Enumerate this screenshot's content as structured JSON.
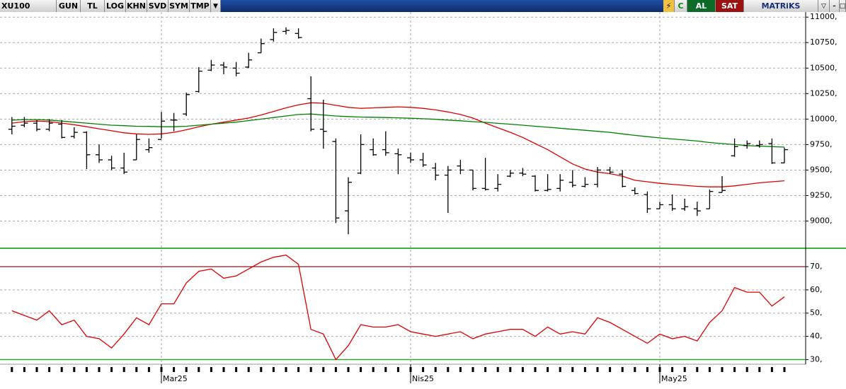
{
  "toolbar": {
    "symbol": "XU100",
    "buttons": [
      "GUN",
      "TL",
      "LOG",
      "KHN",
      "SVD",
      "SYM",
      "TMP"
    ],
    "c": "C",
    "buy": "AL",
    "sell": "SAT",
    "brand": "MATRiKS"
  },
  "chart_data": [
    {
      "type": "ohlc",
      "color": "#000000",
      "open": [
        9900,
        9940,
        9960,
        9900,
        9950,
        9830,
        9870,
        9650,
        9600,
        9520,
        9600,
        9700,
        9800,
        9990,
        10050,
        10270,
        10480,
        10530,
        10500,
        10510,
        10650,
        10780,
        10860,
        10840,
        10200,
        9900,
        9780,
        9100,
        9470,
        9700,
        9700,
        9660,
        9620,
        9600,
        9520,
        9450,
        9540,
        9500,
        9320,
        9320,
        9440,
        9470,
        9440,
        9300,
        9320,
        9380,
        9340,
        9360,
        9500,
        9460,
        9300,
        9260,
        9120,
        9160,
        9120,
        9120,
        9120,
        9280,
        9640,
        9740,
        9740,
        9760,
        9570
      ],
      "high": [
        10020,
        10020,
        9990,
        10000,
        9990,
        9920,
        9880,
        9750,
        9640,
        9670,
        9850,
        9810,
        10070,
        10060,
        10260,
        10510,
        10580,
        10560,
        10560,
        10650,
        10790,
        10890,
        10900,
        10890,
        10420,
        10190,
        9810,
        9430,
        9850,
        9810,
        9880,
        9710,
        9670,
        9670,
        9570,
        9540,
        9600,
        9500,
        9620,
        9460,
        9500,
        9520,
        9450,
        9460,
        9460,
        9500,
        9430,
        9530,
        9530,
        9500,
        9330,
        9290,
        9190,
        9260,
        9220,
        9190,
        9310,
        9440,
        9810,
        9790,
        9790,
        9810,
        9720
      ],
      "low": [
        9850,
        9920,
        9880,
        9880,
        9810,
        9810,
        9510,
        9570,
        9500,
        9460,
        9600,
        9670,
        9810,
        9880,
        10030,
        10260,
        10470,
        10440,
        10420,
        10500,
        10650,
        10760,
        10830,
        10790,
        9880,
        9710,
        8980,
        8870,
        9460,
        9640,
        9640,
        9460,
        9570,
        9530,
        9400,
        9080,
        9460,
        9300,
        9300,
        9290,
        9430,
        9440,
        9290,
        9290,
        9290,
        9330,
        9330,
        9330,
        9460,
        9330,
        9260,
        9080,
        9120,
        9100,
        9100,
        9050,
        9120,
        9280,
        9630,
        9710,
        9720,
        9560,
        9570
      ],
      "close": [
        9930,
        9960,
        9900,
        9960,
        9820,
        9870,
        9650,
        9600,
        9520,
        9480,
        9800,
        9720,
        9980,
        9990,
        10240,
        10470,
        10530,
        10510,
        10450,
        10580,
        10740,
        10850,
        10870,
        10800,
        9900,
        9880,
        9030,
        9380,
        9750,
        9650,
        9670,
        9650,
        9600,
        9550,
        9450,
        9500,
        9500,
        9320,
        9310,
        9360,
        9470,
        9460,
        9300,
        9310,
        9400,
        9350,
        9360,
        9500,
        9480,
        9340,
        9270,
        9120,
        9160,
        9120,
        9140,
        9100,
        9290,
        9300,
        9730,
        9760,
        9750,
        9570,
        9700
      ],
      "overlays": [
        {
          "color": "#e00000",
          "values": [
            9960,
            9975,
            9980,
            9975,
            9960,
            9945,
            9925,
            9905,
            9885,
            9865,
            9855,
            9850,
            9855,
            9870,
            9895,
            9925,
            9950,
            9970,
            9990,
            10010,
            10040,
            10075,
            10110,
            10140,
            10160,
            10155,
            10135,
            10115,
            10105,
            10110,
            10115,
            10120,
            10115,
            10105,
            10090,
            10070,
            10045,
            10010,
            9960,
            9915,
            9870,
            9820,
            9760,
            9700,
            9630,
            9560,
            9510,
            9480,
            9465,
            9440,
            9400,
            9385,
            9370,
            9360,
            9350,
            9340,
            9335,
            9335,
            9345,
            9360,
            9375,
            9385,
            9395
          ]
        },
        {
          "color": "#008000",
          "values": [
            9990,
            9995,
            9995,
            9990,
            9980,
            9970,
            9960,
            9950,
            9940,
            9935,
            9930,
            9928,
            9925,
            9925,
            9930,
            9940,
            9950,
            9960,
            9970,
            9985,
            10000,
            10015,
            10030,
            10045,
            10050,
            10040,
            10030,
            10025,
            10020,
            10018,
            10015,
            10012,
            10008,
            10003,
            9998,
            9990,
            9983,
            9975,
            9968,
            9958,
            9950,
            9940,
            9930,
            9920,
            9910,
            9900,
            9890,
            9880,
            9870,
            9855,
            9840,
            9828,
            9815,
            9805,
            9795,
            9785,
            9770,
            9760,
            9750,
            9740,
            9735,
            9730,
            9725
          ]
        }
      ],
      "ylim": [
        8740,
        11050
      ],
      "yticks": [
        {
          "value": 9000,
          "label": "9000,"
        },
        {
          "value": 9250,
          "label": "9250,"
        },
        {
          "value": 9500,
          "label": "9500,"
        },
        {
          "value": 9750,
          "label": "9750,"
        },
        {
          "value": 10000,
          "label": "10000,"
        },
        {
          "value": 10250,
          "label": "10250,"
        },
        {
          "value": 10500,
          "label": "10500,"
        },
        {
          "value": 10750,
          "label": "10750,"
        },
        {
          "value": 11000,
          "label": "11000,"
        }
      ],
      "grid": true
    },
    {
      "type": "line",
      "color": "#e00000",
      "categories": [
        null,
        null,
        null,
        null,
        null,
        null,
        null,
        null,
        null,
        null,
        null,
        null,
        "Mar25",
        null,
        null,
        null,
        null,
        null,
        null,
        null,
        null,
        null,
        null,
        null,
        null,
        null,
        null,
        null,
        null,
        null,
        null,
        null,
        "Nis25",
        null,
        null,
        null,
        null,
        null,
        null,
        null,
        null,
        null,
        null,
        null,
        null,
        null,
        null,
        null,
        null,
        null,
        null,
        null,
        "May25",
        null,
        null,
        null,
        null,
        null,
        null,
        null,
        null,
        null,
        null
      ],
      "values": [
        51,
        49,
        47,
        51,
        45,
        47,
        40,
        39,
        35,
        41,
        48,
        45,
        54,
        54,
        63,
        68,
        69,
        65,
        66,
        69,
        72,
        74,
        75,
        71,
        43,
        41,
        30,
        36,
        45,
        44,
        44,
        45,
        42,
        41,
        40,
        41,
        42,
        39,
        41,
        42,
        43,
        43,
        40,
        44,
        41,
        42,
        41,
        48,
        46,
        43,
        40,
        37,
        41,
        39,
        40,
        38,
        46,
        51,
        61,
        59,
        59,
        53,
        57
      ],
      "levels": [
        {
          "value": 70,
          "color": "#8b1a1a"
        },
        {
          "value": 30,
          "color": "#2ca02c"
        }
      ],
      "ylim": [
        28,
        77.3
      ],
      "yticks": [
        {
          "value": 30,
          "label": "30,"
        },
        {
          "value": 40,
          "label": "40,"
        },
        {
          "value": 50,
          "label": "50,"
        },
        {
          "value": 60,
          "label": "60,"
        },
        {
          "value": 70,
          "label": "70,"
        }
      ],
      "grid": true
    }
  ]
}
